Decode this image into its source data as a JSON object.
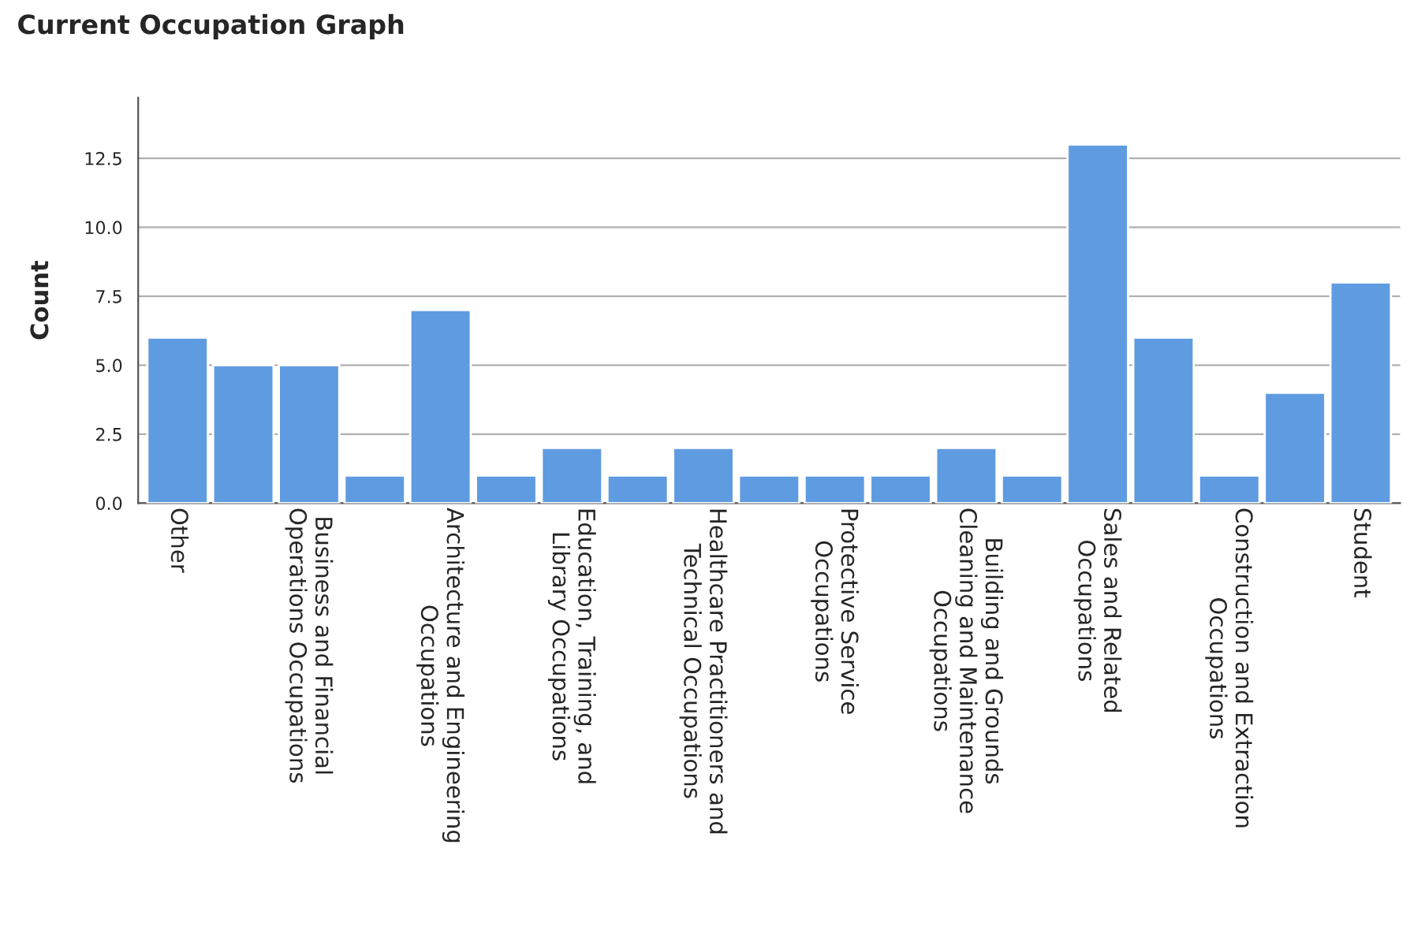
{
  "chart_data": {
    "type": "bar",
    "title": "Current Occupation Graph",
    "ylabel": "Count",
    "categories": [
      "Other",
      null,
      "Business and Financial\nOperations Occupations",
      null,
      "Architecture and Engineering\nOccupations",
      null,
      "Education, Training, and\nLibrary Occupations",
      null,
      "Healthcare Practitioners and\nTechnical Occupations",
      null,
      "Protective Service\nOccupations",
      null,
      "Building and Grounds\nCleaning and Maintenance\nOccupations",
      null,
      "Sales and Related\nOccupations",
      null,
      "Construction and Extraction\nOccupations",
      null,
      "Student"
    ],
    "values": [
      6,
      5,
      5,
      1,
      7,
      1,
      2,
      1,
      2,
      1,
      1,
      1,
      2,
      1,
      13,
      6,
      1,
      4,
      8
    ],
    "color": "#5f9be0",
    "ylim": [
      0,
      14.7
    ],
    "yticks": [
      {
        "value": 0,
        "label": "0.0"
      },
      {
        "value": 2.5,
        "label": "2.5"
      },
      {
        "value": 5,
        "label": "5.0"
      },
      {
        "value": 7.5,
        "label": "7.5"
      },
      {
        "value": 10,
        "label": "10.0"
      },
      {
        "value": 12.5,
        "label": "12.5"
      }
    ],
    "grid": "y"
  }
}
